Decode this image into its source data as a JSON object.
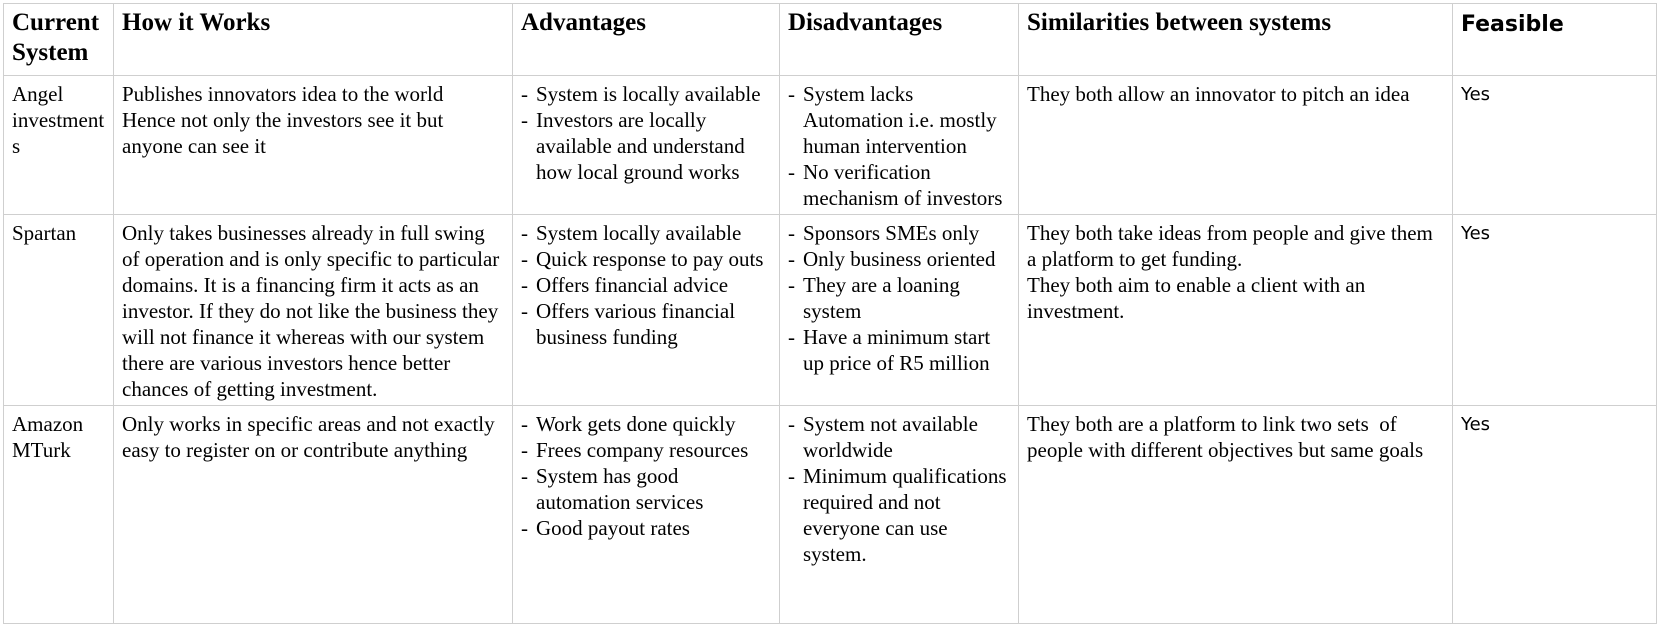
{
  "headers": [
    {
      "line1": "Current",
      "line2": "System"
    },
    {
      "line1": "How it Works"
    },
    {
      "line1": "Advantages"
    },
    {
      "line1": "Disadvantages"
    },
    {
      "line1": "Similarities between systems"
    },
    {
      "line1": "Feasible"
    }
  ],
  "rows": [
    {
      "system": [
        "Angel",
        "investment",
        "s"
      ],
      "how": [
        "Publishes innovators idea to the world",
        "Hence not only the investors see it but",
        "anyone can see it"
      ],
      "advantages": [
        "System is locally available",
        "Investors are locally available and understand how local ground works"
      ],
      "disadvantages": [
        "System lacks Automation i.e. mostly human intervention",
        "No verification mechanism of investors"
      ],
      "similarities": [
        "They both allow an innovator to pitch an idea"
      ],
      "feasible": "Yes"
    },
    {
      "system": [
        "Spartan"
      ],
      "how": [
        "Only takes businesses already in full swing of operation and is only specific to particular domains. It is a financing firm it acts as an investor. If they do not like the business they will not finance it whereas with our system there are various investors hence better chances of getting investment."
      ],
      "advantages": [
        "System locally available",
        "Quick response to pay outs",
        "Offers financial advice",
        "Offers various financial business funding"
      ],
      "disadvantages": [
        "Sponsors SMEs only",
        "Only business oriented",
        "They are a loaning system",
        "Have a minimum start up price of R5 million"
      ],
      "similarities": [
        "They both take ideas from people and give them a platform to get funding.",
        "They both aim to enable a client with an investment."
      ],
      "feasible": "Yes"
    },
    {
      "system": [
        "Amazon",
        "MTurk"
      ],
      "how": [
        "Only works in specific areas and not exactly easy to register on or contribute anything"
      ],
      "advantages": [
        "Work gets done quickly",
        "Frees company resources",
        "System has good automation services",
        "Good payout rates"
      ],
      "disadvantages": [
        "System not available worldwide",
        "Minimum qualifications required and not everyone can use system."
      ],
      "similarities": [
        "They both are a platform to link two sets  of people with different objectives but same goals"
      ],
      "feasible": "Yes"
    }
  ]
}
